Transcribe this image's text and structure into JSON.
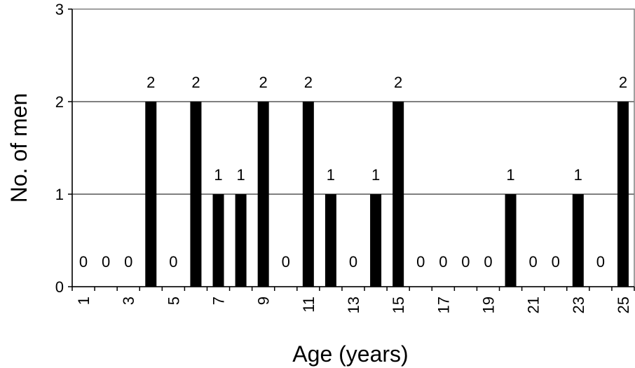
{
  "chart_data": {
    "type": "bar",
    "title": "",
    "xlabel": "Age (years)",
    "ylabel": "No. of men",
    "categories": [
      1,
      2,
      3,
      4,
      5,
      6,
      7,
      8,
      9,
      10,
      11,
      12,
      13,
      14,
      15,
      16,
      17,
      18,
      19,
      20,
      21,
      22,
      23,
      24,
      25
    ],
    "values": [
      0,
      0,
      0,
      2,
      0,
      2,
      1,
      1,
      2,
      0,
      2,
      1,
      0,
      1,
      2,
      0,
      0,
      0,
      0,
      1,
      0,
      0,
      1,
      0,
      2
    ],
    "x_tick_labels": [
      "1",
      "3",
      "5",
      "7",
      "9",
      "11",
      "13",
      "15",
      "17",
      "19",
      "21",
      "23",
      "25"
    ],
    "y_ticks": [
      0,
      1,
      2,
      3
    ],
    "ylim": [
      0,
      3
    ],
    "grid": "horizontal",
    "legend": "none",
    "bar_color": "#000000"
  }
}
